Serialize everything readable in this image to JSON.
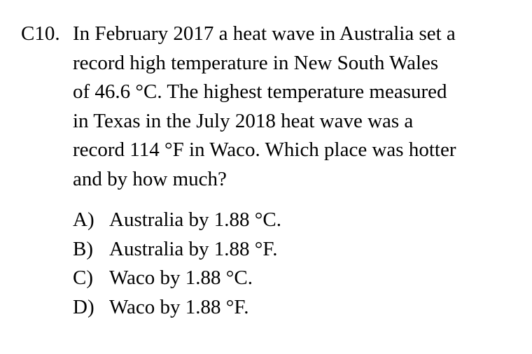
{
  "question": {
    "number": "C10.",
    "stem_lines": [
      "In February 2017 a heat wave in Australia set a",
      "record high temperature in New South Wales",
      "of 46.6 °C. The highest temperature measured",
      "in Texas in the July 2018 heat wave was a",
      "record 114 °F in Waco. Which place was hotter",
      "and by how much?"
    ],
    "options": [
      {
        "letter": "A)",
        "text": "Australia by 1.88 °C."
      },
      {
        "letter": "B)",
        "text": "Australia by 1.88 °F."
      },
      {
        "letter": "C)",
        "text": "Waco by 1.88 °C."
      },
      {
        "letter": "D)",
        "text": "Waco by 1.88 °F."
      }
    ]
  }
}
